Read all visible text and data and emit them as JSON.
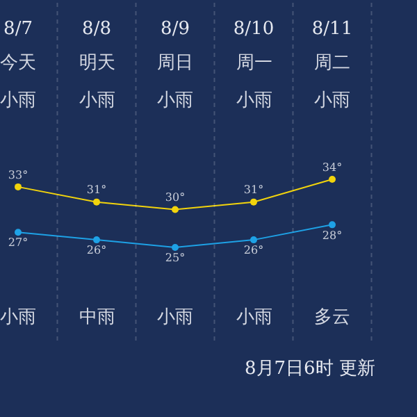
{
  "chart_data": {
    "type": "line",
    "categories": [
      "8/7",
      "8/8",
      "8/9",
      "8/10",
      "8/11"
    ],
    "series": [
      {
        "color": "#f2d40c",
        "values": [
          33,
          31,
          30,
          31,
          34
        ],
        "value_labels": [
          "33°",
          "31°",
          "30°",
          "31°",
          "34°"
        ]
      },
      {
        "color": "#1ea2e6",
        "values": [
          27,
          26,
          25,
          26,
          28
        ],
        "value_labels": [
          "27°",
          "26°",
          "25°",
          "26°",
          "28°"
        ]
      }
    ],
    "marker": "circle",
    "line_style": "solid",
    "tick_labels": "x",
    "annotations": [
      "今天",
      "明天",
      "周日",
      "周一",
      "周二",
      "小雨",
      "小雨",
      "小雨",
      "小雨",
      "小雨",
      "小雨",
      "中雨",
      "小雨",
      "小雨",
      "多云",
      "8月7日6时 更新"
    ]
  }
}
